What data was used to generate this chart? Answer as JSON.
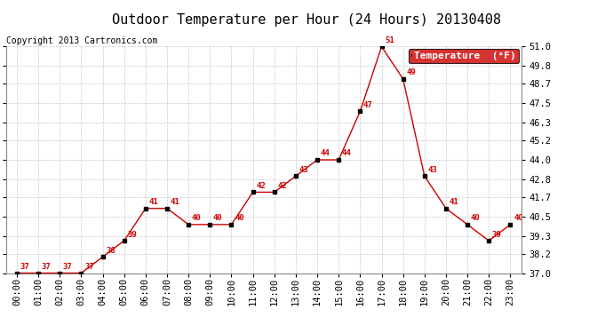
{
  "title": "Outdoor Temperature per Hour (24 Hours) 20130408",
  "copyright": "Copyright 2013 Cartronics.com",
  "legend_label": "Temperature  (°F)",
  "hours": [
    "00:00",
    "01:00",
    "02:00",
    "03:00",
    "04:00",
    "05:00",
    "06:00",
    "07:00",
    "08:00",
    "09:00",
    "10:00",
    "11:00",
    "12:00",
    "13:00",
    "14:00",
    "15:00",
    "16:00",
    "17:00",
    "18:00",
    "19:00",
    "20:00",
    "21:00",
    "22:00",
    "23:00"
  ],
  "temps": [
    37,
    37,
    37,
    37,
    38,
    39,
    41,
    41,
    40,
    40,
    40,
    42,
    42,
    43,
    44,
    44,
    47,
    51,
    49,
    43,
    41,
    40,
    39,
    40
  ],
  "line_color": "#cc0000",
  "marker_color": "#000000",
  "label_color": "#cc0000",
  "legend_bg": "#cc0000",
  "legend_text_color": "#ffffff",
  "grid_color": "#c8c8c8",
  "background_color": "#ffffff",
  "ylim_min": 37.0,
  "ylim_max": 51.0,
  "yticks": [
    37.0,
    38.2,
    39.3,
    40.5,
    41.7,
    42.8,
    44.0,
    45.2,
    46.3,
    47.5,
    48.7,
    49.8,
    51.0
  ],
  "title_fontsize": 11,
  "copyright_fontsize": 7,
  "label_fontsize": 6.5,
  "tick_fontsize": 7.5,
  "legend_fontsize": 8
}
